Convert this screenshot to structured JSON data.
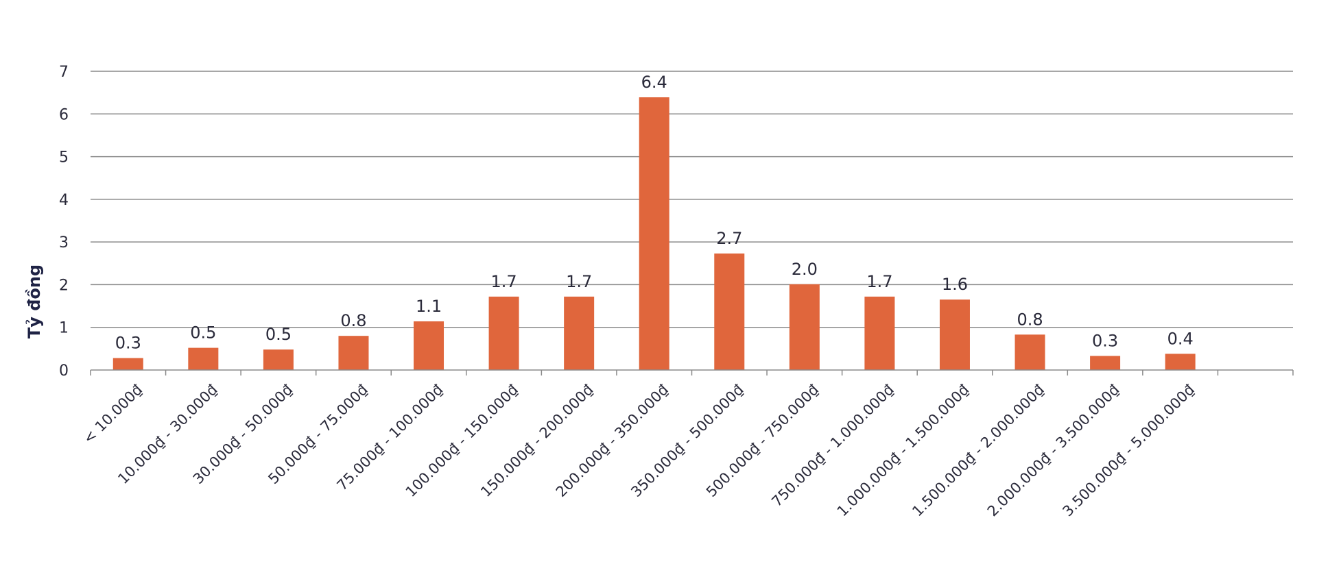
{
  "chart_data": {
    "type": "bar",
    "title": "",
    "xlabel": "",
    "ylabel": "Tỷ đồng",
    "ylim": [
      0,
      7
    ],
    "yticks": [
      0,
      1,
      2,
      3,
      4,
      5,
      6,
      7
    ],
    "grid": true,
    "legend": "none",
    "bar_color": "#e0663c",
    "categories": [
      "< 10.000₫",
      "10.000₫ - 30.000₫",
      "30.000₫ - 50.000₫",
      "50.000₫ - 75.000₫",
      "75.000₫ - 100.000₫",
      "100.000₫ - 150.000₫",
      "150.000₫ - 200.000₫",
      "200.000₫ - 350.000₫",
      "350.000₫ - 500.000₫",
      "500.000₫ - 750.000₫",
      "750.000₫ - 1.000.000₫",
      "1.000.000₫ - 1.500.000₫",
      "1.500.000₫ - 2.000.000₫",
      "2.000.000₫ - 3.500.000₫",
      "3.500.000₫ - 5.000.000₫",
      ""
    ],
    "values": [
      0.28,
      0.52,
      0.48,
      0.8,
      1.14,
      1.72,
      1.72,
      6.39,
      2.73,
      2.01,
      1.72,
      1.65,
      0.83,
      0.33,
      0.38,
      null
    ],
    "data_labels": [
      "0.3",
      "0.5",
      "0.5",
      "0.8",
      "1.1",
      "1.7",
      "1.7",
      "6.4",
      "2.7",
      "2.0",
      "1.7",
      "1.6",
      "0.8",
      "0.3",
      "0.4",
      ""
    ]
  }
}
